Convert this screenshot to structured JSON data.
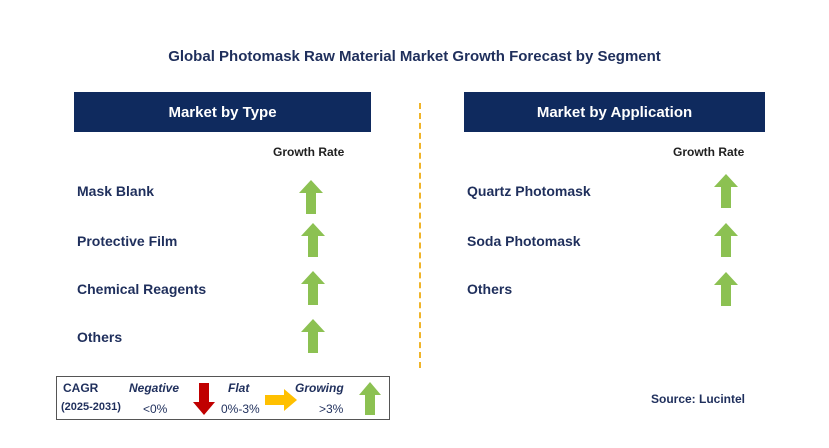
{
  "title": "Global Photomask Raw Material Market Growth Forecast by Segment",
  "left_panel": {
    "header": "Market by Type",
    "column_label": "Growth Rate",
    "rows": [
      {
        "label": "Mask Blank",
        "trend": "growing"
      },
      {
        "label": "Protective Film",
        "trend": "growing"
      },
      {
        "label": "Chemical Reagents",
        "trend": "growing"
      },
      {
        "label": "Others",
        "trend": "growing"
      }
    ]
  },
  "right_panel": {
    "header": "Market by Application",
    "column_label": "Growth Rate",
    "rows": [
      {
        "label": "Quartz Photomask",
        "trend": "growing"
      },
      {
        "label": "Soda Photomask",
        "trend": "growing"
      },
      {
        "label": "Others",
        "trend": "growing"
      }
    ]
  },
  "legend": {
    "cagr_label": "CAGR",
    "period": "(2025-2031)",
    "negative_label": "Negative",
    "negative_range": "<0%",
    "flat_label": "Flat",
    "flat_range": "0%-3%",
    "growing_label": "Growing",
    "growing_range": ">3%"
  },
  "source": "Source: Lucintel",
  "colors": {
    "header_bg": "#0f2a5e",
    "text": "#1f2f5c",
    "growing": "#8cc152",
    "negative": "#c00000",
    "flat": "#ffc000",
    "divider": "#f0b429"
  },
  "icons": {
    "growing": "arrow-up-icon",
    "negative": "arrow-down-icon",
    "flat": "arrow-right-icon"
  }
}
